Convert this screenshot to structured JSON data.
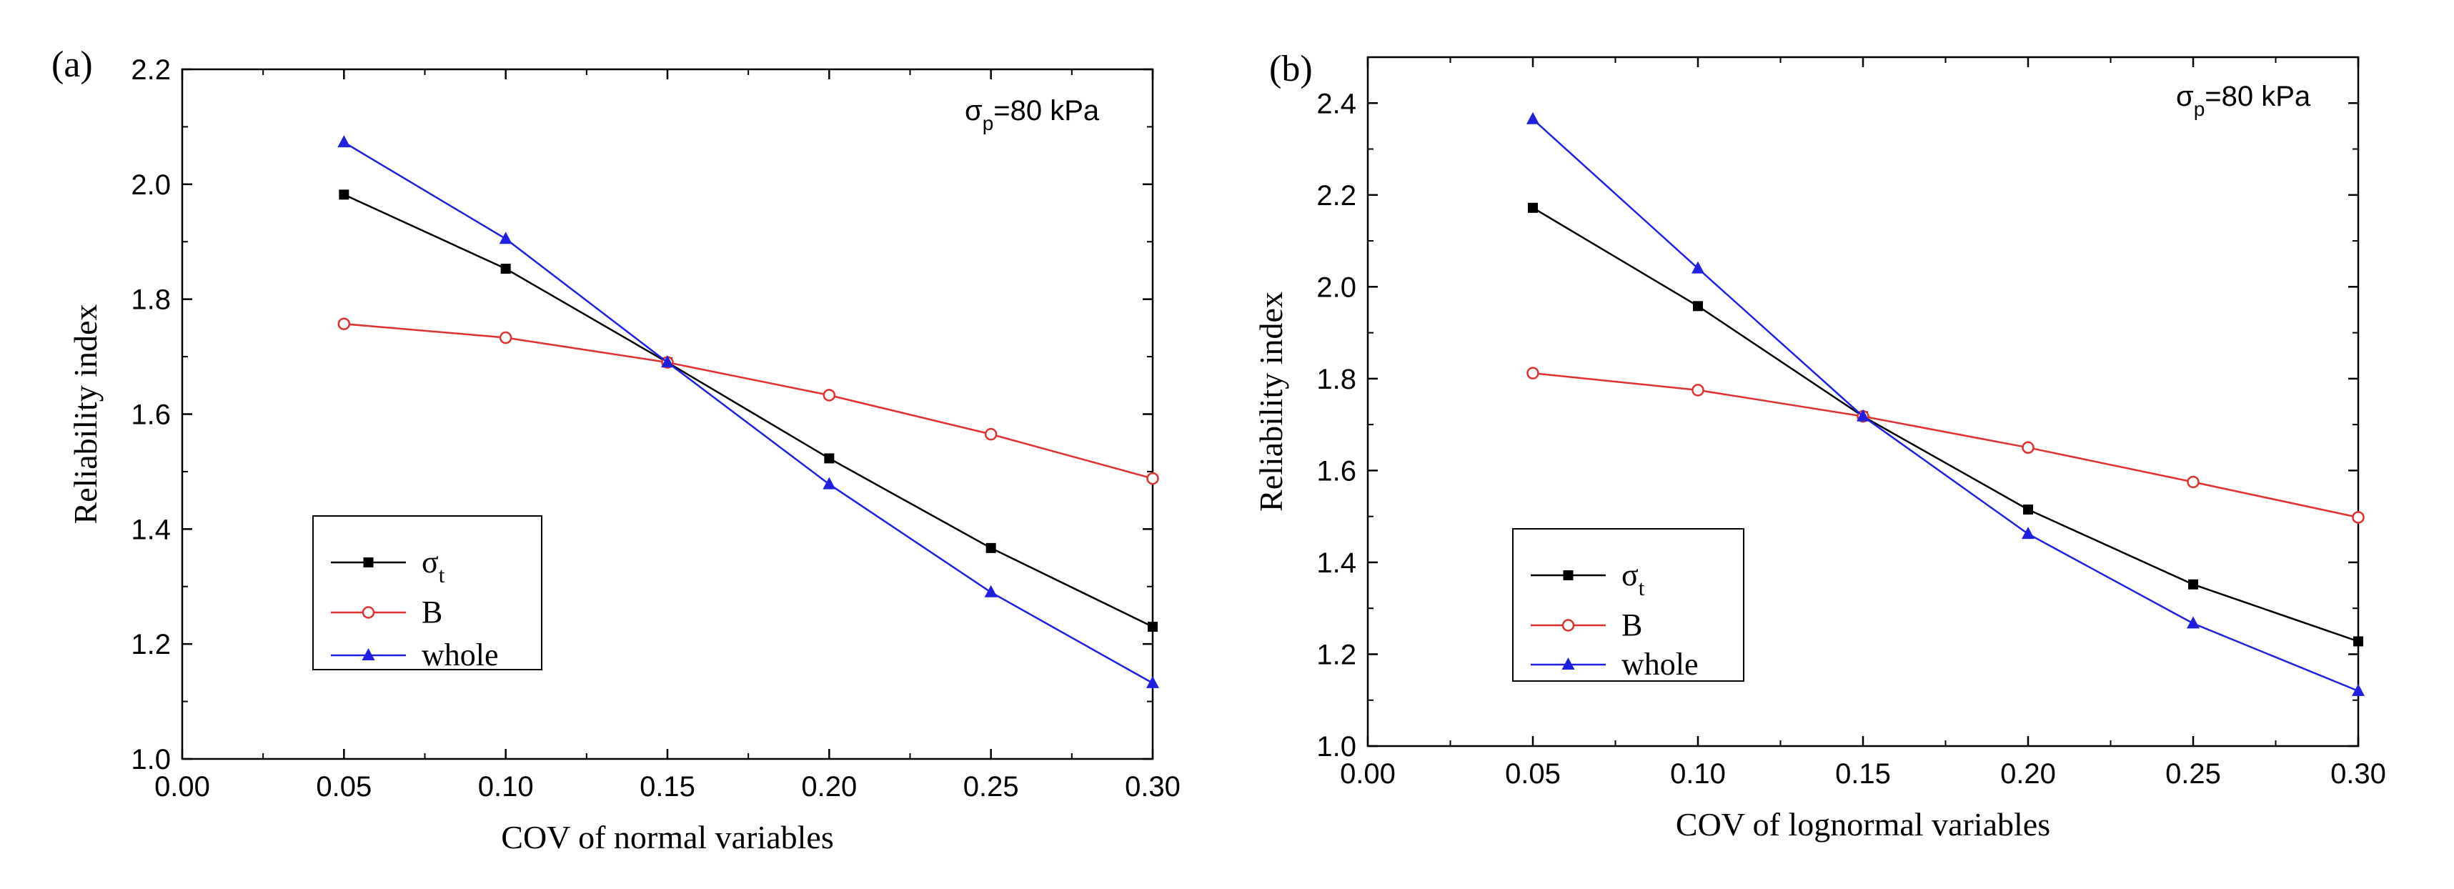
{
  "chart_data": [
    {
      "type": "line",
      "panel_label": "(a)",
      "annotation": {
        "base": "σ",
        "sub": "p",
        "rest": "=80 kPa"
      },
      "xlabel": "COV of normal variables",
      "ylabel": "Reliability index",
      "xlim": [
        0.0,
        0.3
      ],
      "ylim": [
        1.0,
        2.2
      ],
      "xticks": [
        "0.00",
        "0.05",
        "0.10",
        "0.15",
        "0.20",
        "0.25",
        "0.30"
      ],
      "yticks": [
        "1.0",
        "1.2",
        "1.4",
        "1.6",
        "1.8",
        "2.0",
        "2.2"
      ],
      "x": [
        0.05,
        0.1,
        0.15,
        0.2,
        0.25,
        0.3
      ],
      "grid": false,
      "legend_position": "bottom-left",
      "series": [
        {
          "name": "σt",
          "label_base": "σ",
          "label_sub": "t",
          "marker": "square",
          "color": "#000000",
          "values": [
            1.982,
            1.853,
            1.69,
            1.523,
            1.367,
            1.23
          ]
        },
        {
          "name": "B",
          "label_base": "B",
          "label_sub": "",
          "marker": "circle-open",
          "color": "#e03030",
          "values": [
            1.757,
            1.733,
            1.69,
            1.633,
            1.565,
            1.488
          ]
        },
        {
          "name": "whole",
          "label_base": "whole",
          "label_sub": "",
          "marker": "triangle",
          "color": "#2020e0",
          "values": [
            2.073,
            1.905,
            1.69,
            1.478,
            1.29,
            1.132
          ]
        }
      ]
    },
    {
      "type": "line",
      "panel_label": "(b)",
      "annotation": {
        "base": "σ",
        "sub": "p",
        "rest": "=80 kPa"
      },
      "xlabel": "COV of lognormal variables",
      "ylabel": "Reliability index",
      "xlim": [
        0.0,
        0.3
      ],
      "ylim": [
        1.0,
        2.5
      ],
      "xticks": [
        "0.00",
        "0.05",
        "0.10",
        "0.15",
        "0.20",
        "0.25",
        "0.30"
      ],
      "yticks": [
        "1.0",
        "1.2",
        "1.4",
        "1.6",
        "1.8",
        "2.0",
        "2.2",
        "2.4"
      ],
      "x": [
        0.05,
        0.1,
        0.15,
        0.2,
        0.25,
        0.3
      ],
      "grid": false,
      "legend_position": "bottom-left",
      "series": [
        {
          "name": "σt",
          "label_base": "σ",
          "label_sub": "t",
          "marker": "square",
          "color": "#000000",
          "values": [
            2.172,
            1.958,
            1.718,
            1.515,
            1.352,
            1.228
          ]
        },
        {
          "name": "B",
          "label_base": "B",
          "label_sub": "",
          "marker": "circle-open",
          "color": "#e03030",
          "values": [
            1.812,
            1.775,
            1.718,
            1.65,
            1.575,
            1.498
          ]
        },
        {
          "name": "whole",
          "label_base": "whole",
          "label_sub": "",
          "marker": "triangle",
          "color": "#2020e0",
          "values": [
            2.365,
            2.04,
            1.718,
            1.462,
            1.267,
            1.12
          ]
        }
      ]
    }
  ]
}
